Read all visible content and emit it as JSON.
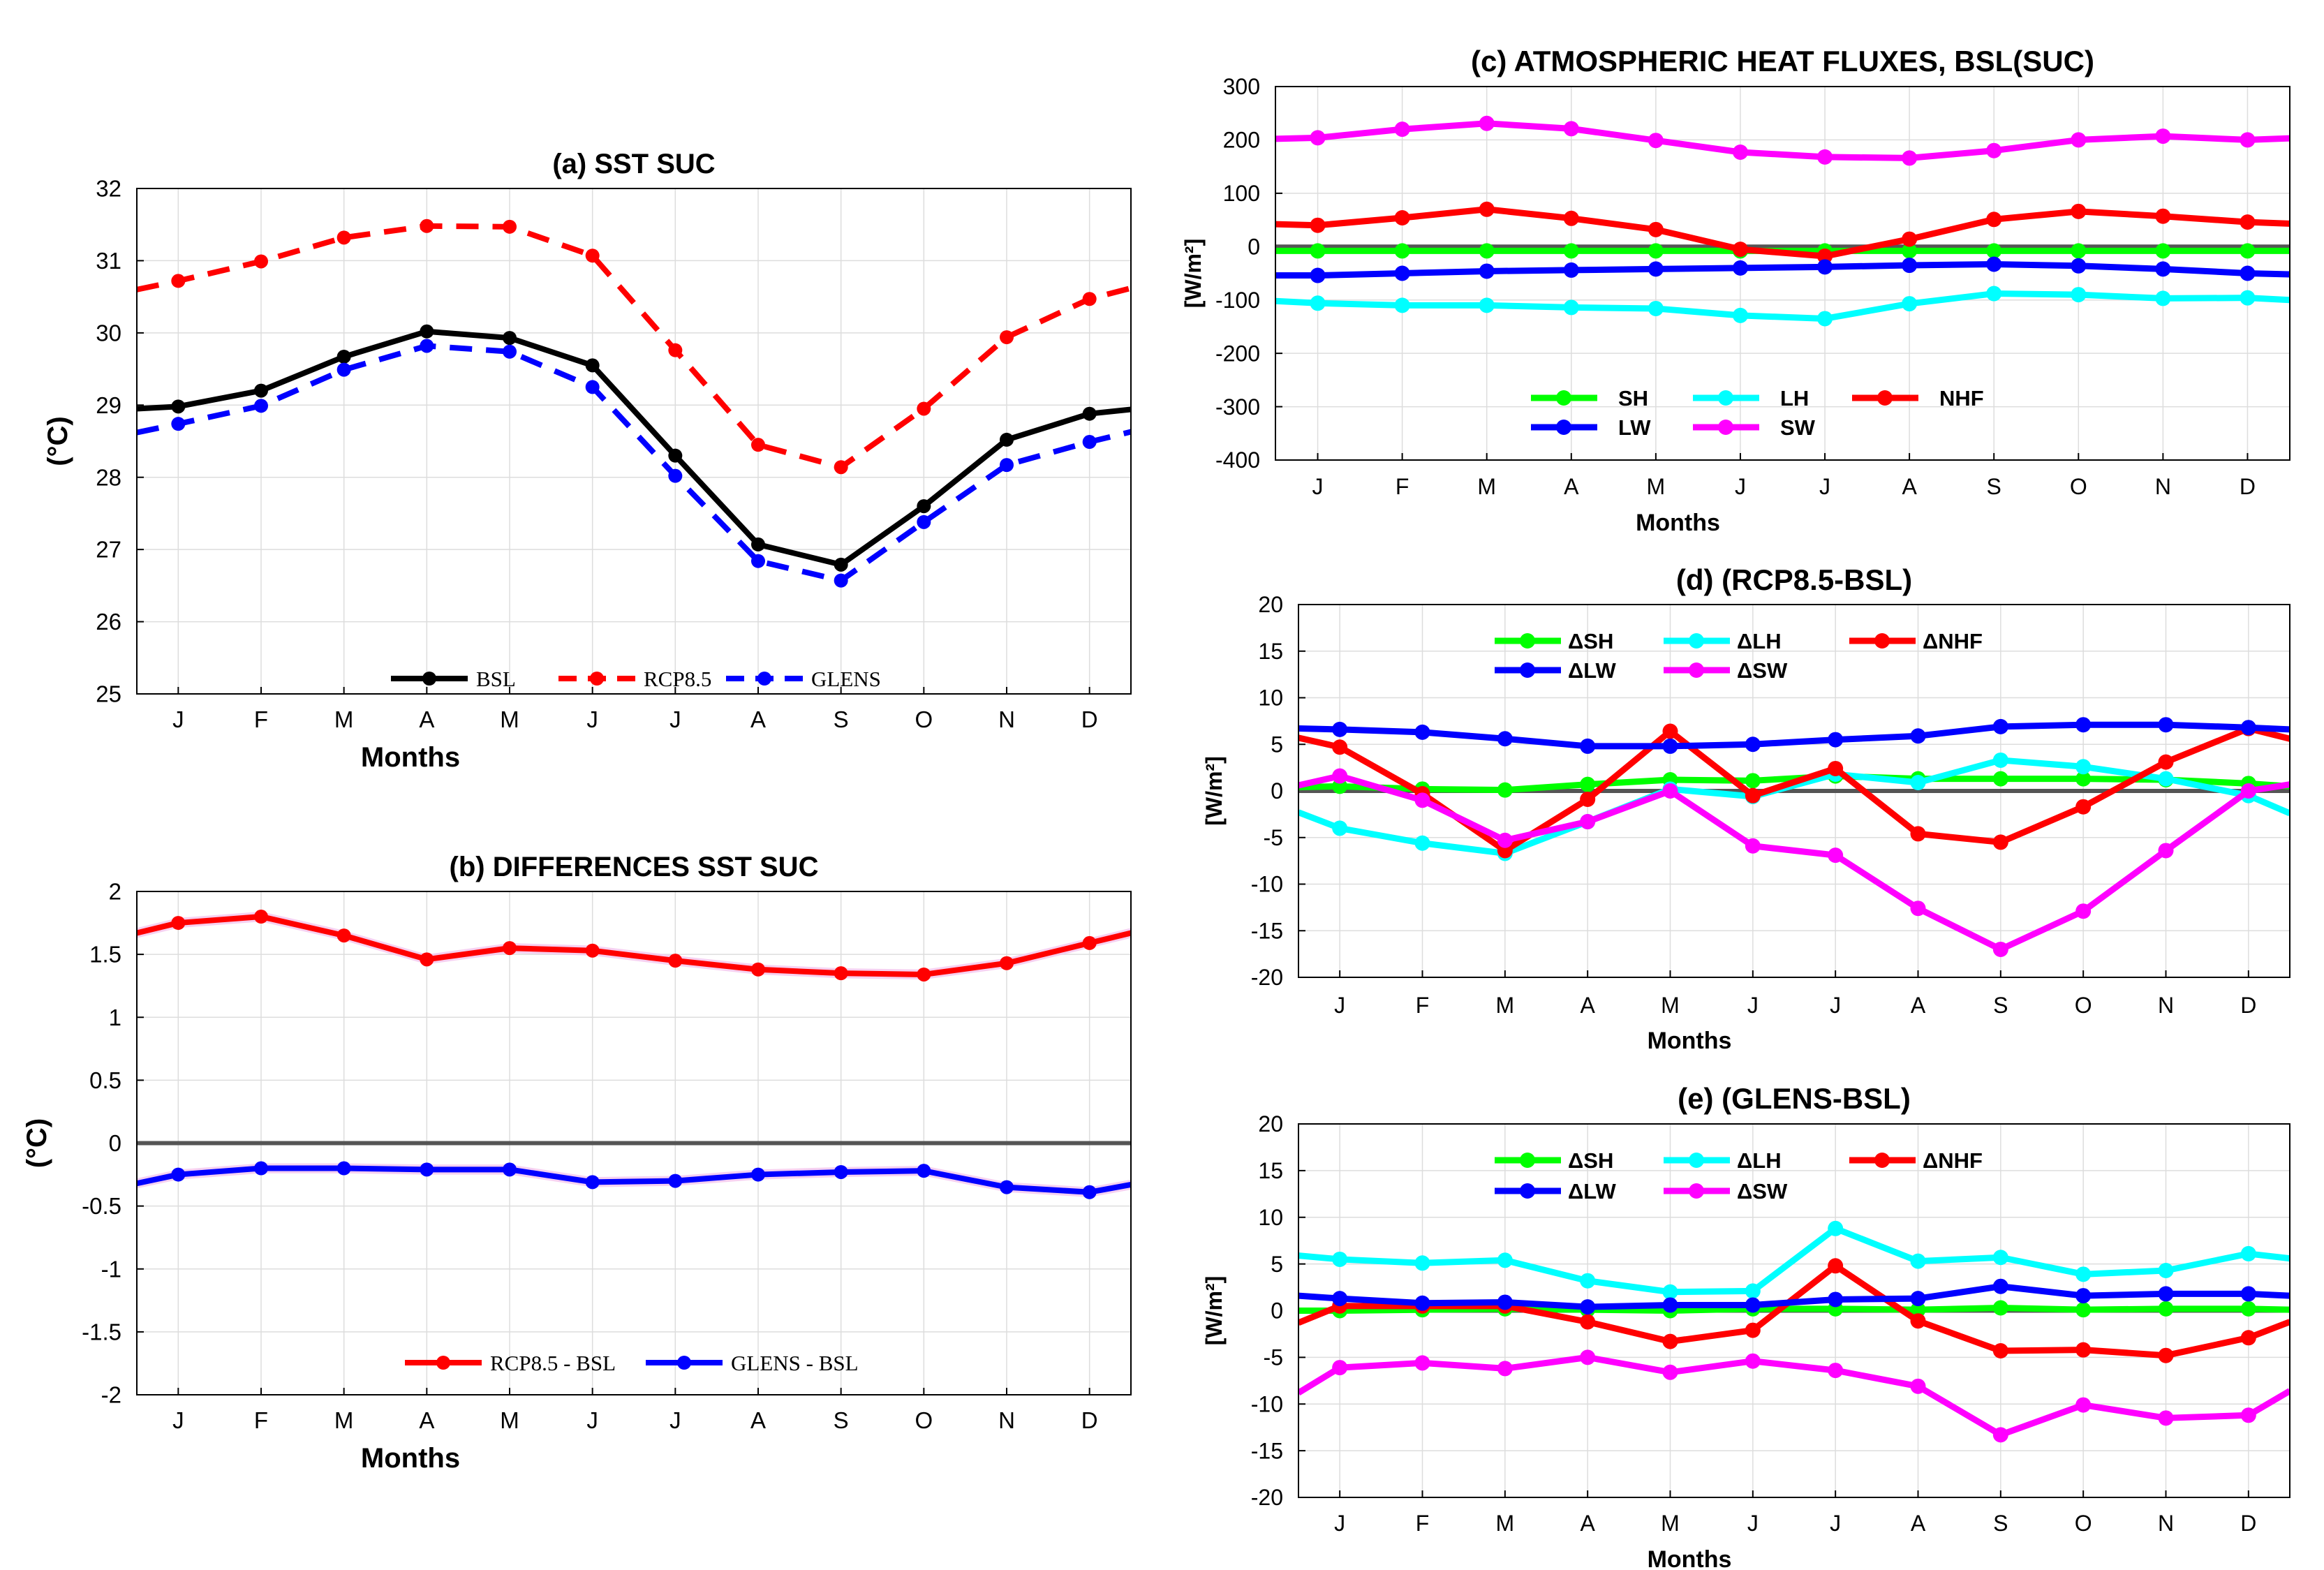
{
  "chart_data": [
    {
      "id": "a",
      "type": "line",
      "title": "(a) SST SUC",
      "xlabel": "Months",
      "ylabel": "(°C)",
      "categories": [
        "J",
        "F",
        "M",
        "A",
        "M",
        "J",
        "J",
        "A",
        "S",
        "O",
        "N",
        "D"
      ],
      "ylim": [
        25,
        32
      ],
      "yticks": [
        "25",
        "26",
        "27",
        "28",
        "29",
        "30",
        "31",
        "32"
      ],
      "grid": true,
      "legend_style": "serif",
      "series": [
        {
          "name": "BSL",
          "color": "#000000",
          "dash": false,
          "values": [
            28.98,
            29.2,
            29.67,
            30.02,
            29.93,
            29.55,
            28.3,
            27.07,
            26.79,
            27.6,
            28.52,
            28.88
          ],
          "left": 28.95,
          "right": 28.94
        },
        {
          "name": "RCP8.5",
          "color": "#ff0000",
          "dash": true,
          "values": [
            30.72,
            30.99,
            31.32,
            31.48,
            31.47,
            31.07,
            29.76,
            28.45,
            28.14,
            28.95,
            29.94,
            30.47
          ],
          "left": 30.6,
          "right": 30.62
        },
        {
          "name": "GLENS",
          "color": "#0000ff",
          "dash": true,
          "values": [
            28.74,
            28.99,
            29.49,
            29.82,
            29.74,
            29.25,
            28.02,
            26.84,
            26.57,
            27.38,
            28.17,
            28.49
          ],
          "left": 28.62,
          "right": 28.63
        }
      ]
    },
    {
      "id": "b",
      "type": "line",
      "title": "(b) DIFFERENCES  SST SUC",
      "xlabel": "Months",
      "ylabel": "(°C)",
      "categories": [
        "J",
        "F",
        "M",
        "A",
        "M",
        "J",
        "J",
        "A",
        "S",
        "O",
        "N",
        "D"
      ],
      "ylim": [
        -2,
        2
      ],
      "yticks": [
        "-2",
        "-1.5",
        "-1",
        "-0.5",
        "0",
        "0.5",
        "1",
        "1.5",
        "2"
      ],
      "grid": true,
      "zero_line": true,
      "legend_style": "serif",
      "series": [
        {
          "name": "RCP8.5 - BSL",
          "color": "#ff0000",
          "dash": false,
          "values": [
            1.75,
            1.8,
            1.65,
            1.46,
            1.55,
            1.53,
            1.45,
            1.38,
            1.35,
            1.34,
            1.43,
            1.59
          ],
          "left": 1.67,
          "right": 1.67,
          "band": 0.04
        },
        {
          "name": "GLENS - BSL",
          "color": "#0000ff",
          "dash": false,
          "values": [
            -0.25,
            -0.2,
            -0.2,
            -0.21,
            -0.21,
            -0.31,
            -0.3,
            -0.25,
            -0.23,
            -0.22,
            -0.35,
            -0.39
          ],
          "left": -0.32,
          "right": -0.33,
          "band": 0.04
        }
      ]
    },
    {
      "id": "c",
      "type": "line",
      "title": "(c) ATMOSPHERIC HEAT FLUXES, BSL(SUC)",
      "xlabel": "Months",
      "ylabel": "[W/m²]",
      "categories": [
        "J",
        "F",
        "M",
        "A",
        "M",
        "J",
        "J",
        "A",
        "S",
        "O",
        "N",
        "D"
      ],
      "ylim": [
        -400,
        300
      ],
      "yticks": [
        "-400",
        "-300",
        "-200",
        "-100",
        "0",
        "100",
        "200",
        "300"
      ],
      "grid": true,
      "zero_line": true,
      "legend_style": "bold",
      "series": [
        {
          "name": "SH",
          "color": "#00ff00",
          "dash": false,
          "values": [
            -8,
            -8,
            -8,
            -8,
            -8,
            -8,
            -8,
            -8,
            -8,
            -8,
            -8,
            -8
          ],
          "left": -8,
          "right": -8
        },
        {
          "name": "LH",
          "color": "#00ffff",
          "dash": false,
          "values": [
            -106,
            -110,
            -110,
            -114,
            -116,
            -129,
            -135,
            -107,
            -88,
            -90,
            -97,
            -96
          ],
          "left": -102,
          "right": -100
        },
        {
          "name": "NHF",
          "color": "#ff0000",
          "dash": false,
          "values": [
            40,
            54,
            70,
            53,
            32,
            -5,
            -18,
            14,
            51,
            66,
            57,
            46
          ],
          "left": 42,
          "right": 43
        },
        {
          "name": "LW",
          "color": "#0000ff",
          "dash": false,
          "values": [
            -54,
            -50,
            -46,
            -44,
            -42,
            -40,
            -38,
            -35,
            -33,
            -36,
            -42,
            -50
          ],
          "left": -54,
          "right": -52
        },
        {
          "name": "SW",
          "color": "#ff00ff",
          "dash": false,
          "values": [
            204,
            220,
            231,
            221,
            199,
            177,
            168,
            166,
            180,
            200,
            207,
            200
          ],
          "left": 202,
          "right": 203
        }
      ]
    },
    {
      "id": "d",
      "type": "line",
      "title": "(d) (RCP8.5-BSL)",
      "xlabel": "Months",
      "ylabel": "[W/m²]",
      "categories": [
        "J",
        "F",
        "M",
        "A",
        "M",
        "J",
        "J",
        "A",
        "S",
        "O",
        "N",
        "D"
      ],
      "ylim": [
        -20,
        20
      ],
      "yticks": [
        "-20",
        "-15",
        "-10",
        "-5",
        "0",
        "5",
        "10",
        "15",
        "20"
      ],
      "grid": true,
      "zero_line": true,
      "legend_style": "bold",
      "series": [
        {
          "name": "ΔSH",
          "color": "#00ff00",
          "dash": false,
          "values": [
            0.5,
            0.2,
            0.1,
            0.7,
            1.2,
            1.1,
            1.6,
            1.3,
            1.3,
            1.3,
            1.2,
            0.8
          ],
          "left": 0.4,
          "right": 0.5
        },
        {
          "name": "ΔLH",
          "color": "#00ffff",
          "dash": false,
          "values": [
            -4.0,
            -5.6,
            -6.7,
            -3.3,
            0.2,
            -0.6,
            1.8,
            0.9,
            3.3,
            2.6,
            1.3,
            -0.5
          ],
          "left": -2.3,
          "right": -2.4
        },
        {
          "name": "ΔNHF",
          "color": "#ff0000",
          "dash": false,
          "values": [
            4.7,
            -0.3,
            -6.4,
            -0.9,
            6.4,
            -0.5,
            2.4,
            -4.6,
            -5.5,
            -1.7,
            3.1,
            6.7
          ],
          "left": 5.7,
          "right": 5.6
        },
        {
          "name": "ΔLW",
          "color": "#0000ff",
          "dash": false,
          "values": [
            6.6,
            6.3,
            5.6,
            4.8,
            4.8,
            5.0,
            5.5,
            5.9,
            6.9,
            7.1,
            7.1,
            6.8
          ],
          "left": 6.7,
          "right": 6.6
        },
        {
          "name": "ΔSW",
          "color": "#ff00ff",
          "dash": false,
          "values": [
            1.6,
            -1.0,
            -5.3,
            -3.3,
            0.0,
            -5.9,
            -6.9,
            -12.6,
            -17.0,
            -12.9,
            -6.4,
            0.0
          ],
          "left": 0.6,
          "right": 0.7
        }
      ]
    },
    {
      "id": "e",
      "type": "line",
      "title": "(e) (GLENS-BSL)",
      "xlabel": "Months",
      "ylabel": "[W/m²]",
      "categories": [
        "J",
        "F",
        "M",
        "A",
        "M",
        "J",
        "J",
        "A",
        "S",
        "O",
        "N",
        "D"
      ],
      "ylim": [
        -20,
        20
      ],
      "yticks": [
        "-20",
        "-15",
        "-10",
        "-5",
        "0",
        "5",
        "10",
        "15",
        "20"
      ],
      "grid": true,
      "zero_line": true,
      "legend_style": "bold",
      "series": [
        {
          "name": "ΔSH",
          "color": "#00ff00",
          "dash": false,
          "values": [
            0.0,
            0.1,
            0.2,
            0.1,
            0.0,
            0.2,
            0.2,
            0.1,
            0.3,
            0.1,
            0.2,
            0.2
          ],
          "left": 0.0,
          "right": 0.1
        },
        {
          "name": "ΔLH",
          "color": "#00ffff",
          "dash": false,
          "values": [
            5.5,
            5.1,
            5.4,
            3.2,
            2.0,
            2.1,
            8.8,
            5.3,
            5.7,
            3.9,
            4.3,
            6.1
          ],
          "left": 5.9,
          "right": 5.6
        },
        {
          "name": "ΔNHF",
          "color": "#ff0000",
          "dash": false,
          "values": [
            0.5,
            0.5,
            0.5,
            -1.2,
            -3.3,
            -2.1,
            4.8,
            -1.1,
            -4.3,
            -4.2,
            -4.8,
            -2.9
          ],
          "left": -1.3,
          "right": -1.2
        },
        {
          "name": "ΔLW",
          "color": "#0000ff",
          "dash": false,
          "values": [
            1.3,
            0.8,
            0.9,
            0.4,
            0.6,
            0.6,
            1.2,
            1.3,
            2.6,
            1.6,
            1.8,
            1.8
          ],
          "left": 1.6,
          "right": 1.6
        },
        {
          "name": "ΔSW",
          "color": "#ff00ff",
          "dash": false,
          "values": [
            -6.1,
            -5.6,
            -6.2,
            -5.0,
            -6.6,
            -5.4,
            -6.4,
            -8.1,
            -13.3,
            -10.1,
            -11.5,
            -11.2
          ],
          "left": -8.8,
          "right": -8.6
        }
      ]
    }
  ]
}
